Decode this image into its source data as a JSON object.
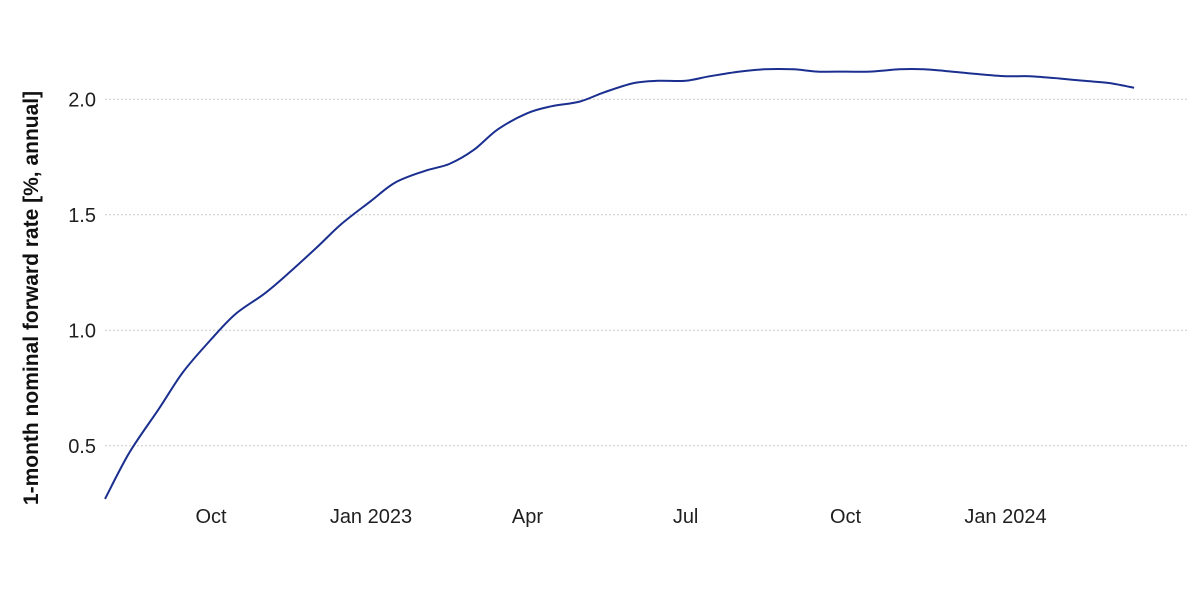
{
  "chart_data": {
    "type": "line",
    "title": "",
    "xlabel": "",
    "ylabel": "1-month nominal forward rate [%, annual]",
    "xlim": [
      "2022-08-01",
      "2024-04-15"
    ],
    "ylim": [
      0.3,
      2.3
    ],
    "grid": true,
    "x_ticks": [
      {
        "label": "Oct",
        "date": "2022-10-01"
      },
      {
        "label": "Jan 2023",
        "date": "2023-01-01"
      },
      {
        "label": "Apr",
        "date": "2023-04-01"
      },
      {
        "label": "Jul",
        "date": "2023-07-01"
      },
      {
        "label": "Oct",
        "date": "2023-10-01"
      },
      {
        "label": "Jan 2024",
        "date": "2024-01-01"
      }
    ],
    "y_ticks": [
      0.5,
      1.0,
      1.5,
      2.0
    ],
    "y_tick_labels": [
      "0.5",
      "1.0",
      "1.5",
      "2.0"
    ],
    "series": [
      {
        "color": "#1a2f8f",
        "points": [
          [
            "2022-08-01",
            0.27
          ],
          [
            "2022-08-15",
            0.47
          ],
          [
            "2022-09-01",
            0.66
          ],
          [
            "2022-09-15",
            0.82
          ],
          [
            "2022-10-01",
            0.96
          ],
          [
            "2022-10-15",
            1.07
          ],
          [
            "2022-11-01",
            1.16
          ],
          [
            "2022-11-15",
            1.25
          ],
          [
            "2022-12-01",
            1.36
          ],
          [
            "2022-12-15",
            1.46
          ],
          [
            "2023-01-01",
            1.56
          ],
          [
            "2023-01-15",
            1.64
          ],
          [
            "2023-02-01",
            1.69
          ],
          [
            "2023-02-15",
            1.72
          ],
          [
            "2023-03-01",
            1.78
          ],
          [
            "2023-03-15",
            1.87
          ],
          [
            "2023-04-01",
            1.94
          ],
          [
            "2023-04-15",
            1.97
          ],
          [
            "2023-05-01",
            1.99
          ],
          [
            "2023-05-15",
            2.03
          ],
          [
            "2023-06-01",
            2.07
          ],
          [
            "2023-06-15",
            2.08
          ],
          [
            "2023-07-01",
            2.08
          ],
          [
            "2023-07-15",
            2.1
          ],
          [
            "2023-08-01",
            2.12
          ],
          [
            "2023-08-15",
            2.13
          ],
          [
            "2023-09-01",
            2.13
          ],
          [
            "2023-09-15",
            2.12
          ],
          [
            "2023-10-01",
            2.12
          ],
          [
            "2023-10-15",
            2.12
          ],
          [
            "2023-11-01",
            2.13
          ],
          [
            "2023-11-15",
            2.13
          ],
          [
            "2023-12-01",
            2.12
          ],
          [
            "2023-12-15",
            2.11
          ],
          [
            "2024-01-01",
            2.1
          ],
          [
            "2024-01-15",
            2.1
          ],
          [
            "2024-02-01",
            2.09
          ],
          [
            "2024-02-15",
            2.08
          ],
          [
            "2024-03-01",
            2.07
          ],
          [
            "2024-03-15",
            2.05
          ]
        ]
      }
    ]
  }
}
